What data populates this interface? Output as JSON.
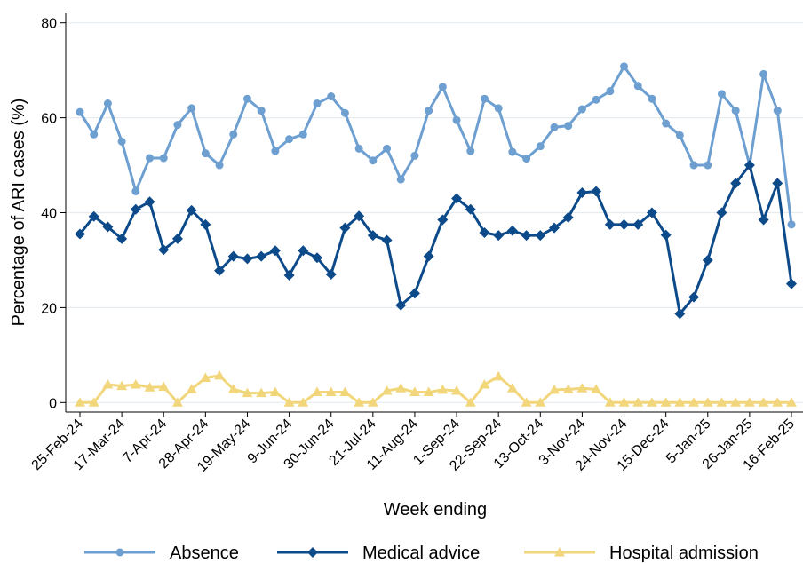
{
  "chart_data": {
    "type": "line",
    "x_label": "Week ending",
    "y_label": "Percentage of ARI cases (%)",
    "categories": [
      "25-Feb-24",
      null,
      null,
      "17-Mar-24",
      null,
      null,
      "7-Apr-24",
      null,
      null,
      "28-Apr-24",
      null,
      null,
      "19-May-24",
      null,
      null,
      "9-Jun-24",
      null,
      null,
      "30-Jun-24",
      null,
      null,
      "21-Jul-24",
      null,
      null,
      "11-Aug-24",
      null,
      null,
      "1-Sep-24",
      null,
      null,
      "22-Sep-24",
      null,
      null,
      "13-Oct-24",
      null,
      null,
      "3-Nov-24",
      null,
      null,
      "24-Nov-24",
      null,
      null,
      "15-Dec-24",
      null,
      null,
      "5-Jan-25",
      null,
      null,
      "26-Jan-25",
      null,
      null,
      "16-Feb-25"
    ],
    "series": [
      {
        "name": "Absence",
        "color": "#6e9fd1",
        "marker": "circle",
        "values": [
          61.2,
          56.5,
          63,
          55,
          44.5,
          51.5,
          51.5,
          58.5,
          62,
          52.5,
          50,
          56.5,
          64,
          61.5,
          53,
          55.5,
          56.5,
          63,
          64.5,
          61,
          53.5,
          51,
          53.5,
          47,
          52,
          61.5,
          66.5,
          59.5,
          53,
          64,
          62,
          52.8,
          51.4,
          54,
          58,
          58.3,
          61.8,
          63.8,
          65.6,
          70.8,
          66.7,
          64,
          58.8,
          56.3,
          50,
          50,
          65,
          61.5,
          50,
          69.2,
          61.5,
          37.5
        ]
      },
      {
        "name": "Medical advice",
        "color": "#0d4a8a",
        "marker": "diamond",
        "values": [
          35.5,
          39.2,
          37,
          34.5,
          40.7,
          42.3,
          32.2,
          34.5,
          40.5,
          37.5,
          27.8,
          30.8,
          30.3,
          30.8,
          32,
          26.8,
          32,
          30.5,
          27,
          36.8,
          39.3,
          35.2,
          34.2,
          20.5,
          23,
          30.8,
          38.5,
          43,
          40.7,
          35.8,
          35.2,
          36.2,
          35.2,
          35.2,
          36.8,
          39,
          44.2,
          44.5,
          37.5,
          37.5,
          37.5,
          40,
          35.3,
          18.7,
          22.2,
          30,
          40,
          46.2,
          50,
          38.5,
          46.2,
          25
        ]
      },
      {
        "name": "Hospital admission",
        "color": "#f1d67b",
        "marker": "triangle",
        "values": [
          0,
          0,
          3.8,
          3.5,
          3.8,
          3.2,
          3.3,
          0,
          2.8,
          5.2,
          5.7,
          2.8,
          2,
          2,
          2.2,
          0,
          0,
          2.2,
          2.2,
          2.2,
          0,
          0,
          2.5,
          3,
          2.2,
          2.2,
          2.7,
          2.5,
          0,
          3.8,
          5.5,
          3,
          0,
          0,
          2.7,
          2.8,
          3,
          2.8,
          0,
          0,
          0,
          0,
          0,
          0,
          0,
          0,
          0,
          0,
          0,
          0,
          0,
          0
        ]
      }
    ],
    "ylim": [
      -2,
      82
    ],
    "yticks": [
      0,
      20,
      40,
      60,
      80
    ],
    "grid": true,
    "legend": "bottom"
  }
}
